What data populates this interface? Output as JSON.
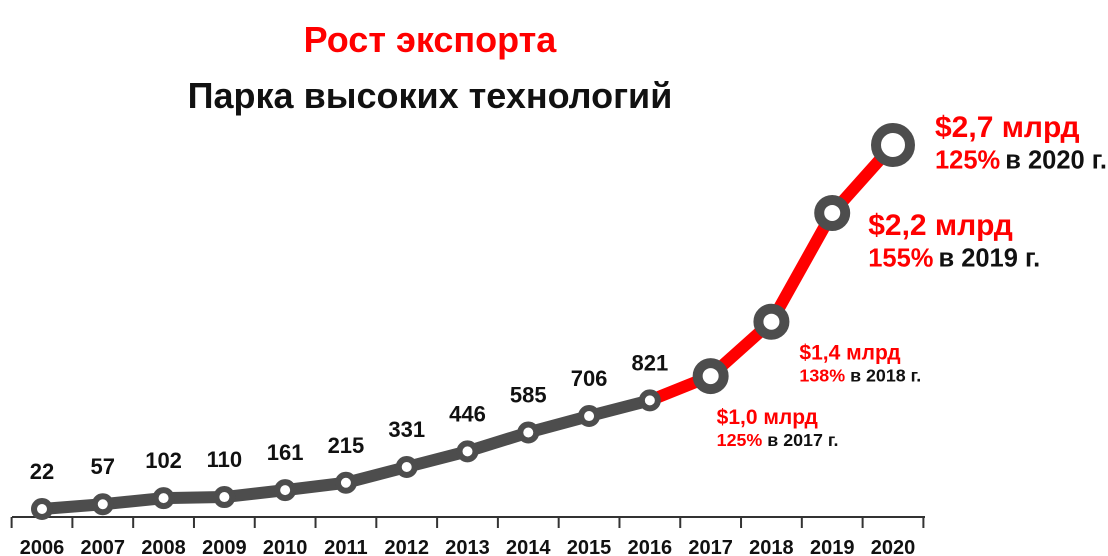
{
  "chart_data": {
    "type": "line",
    "title": "Рост экспорта",
    "subtitle": "Парка высоких технологий",
    "categories": [
      "2006",
      "2007",
      "2008",
      "2009",
      "2010",
      "2011",
      "2012",
      "2013",
      "2014",
      "2015",
      "2016",
      "2017",
      "2018",
      "2019",
      "2020"
    ],
    "series": [
      {
        "color": "#4d4d4d",
        "highlight_color": "#ff0000",
        "values": [
          22,
          57,
          102,
          110,
          161,
          215,
          331,
          446,
          585,
          706,
          821,
          1000,
          1400,
          2200,
          2700
        ],
        "value_labels": [
          null,
          null,
          null,
          null,
          null,
          null,
          null,
          null,
          null,
          null,
          null,
          "$1,0 млрд",
          "$1,4 млрд",
          "$2,2 млрд",
          "$2,7 млрд"
        ],
        "notes": [
          null,
          null,
          null,
          null,
          null,
          null,
          null,
          null,
          null,
          null,
          null,
          {
            "growth": "125%",
            "text": "в 2017 г."
          },
          {
            "growth": "138%",
            "text": "в 2018 г."
          },
          {
            "growth": "155%",
            "text": "в 2019 г."
          },
          {
            "growth": "125%",
            "text": "в 2020 г."
          }
        ]
      }
    ]
  }
}
